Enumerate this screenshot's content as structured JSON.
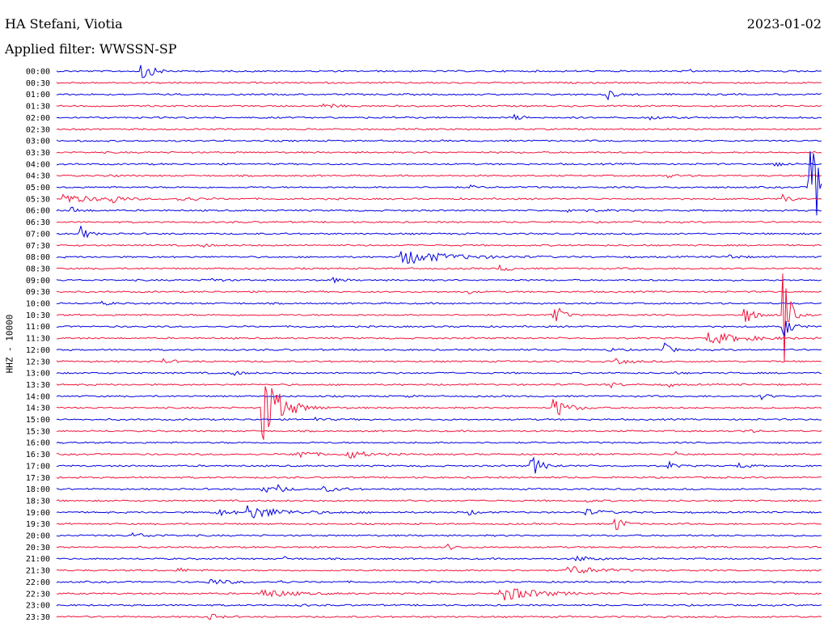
{
  "header": {
    "station": "HA Stefani, Viotia",
    "date": "2023-01-02",
    "filter": "Applied filter: WWSSN-SP"
  },
  "chart_data": {
    "type": "line",
    "title": "HA Stefani, Viotia",
    "ylabel": "HHZ - 10000",
    "colors": [
      "#0000e0",
      "#f0143c"
    ],
    "traces": [
      {
        "label": "00:00",
        "events": [
          [
            0.11,
            14,
            0.012
          ],
          [
            0.83,
            2,
            0.005
          ]
        ]
      },
      {
        "label": "00:30",
        "events": []
      },
      {
        "label": "01:00",
        "events": [
          [
            0.72,
            6,
            0.01
          ]
        ]
      },
      {
        "label": "01:30",
        "events": [
          [
            0.35,
            3,
            0.015
          ]
        ]
      },
      {
        "label": "02:00",
        "events": [
          [
            0.6,
            3,
            0.01
          ],
          [
            0.77,
            3,
            0.015
          ]
        ]
      },
      {
        "label": "02:30",
        "events": []
      },
      {
        "label": "03:00",
        "events": []
      },
      {
        "label": "03:30",
        "events": []
      },
      {
        "label": "04:00",
        "events": [
          [
            0.94,
            4,
            0.01
          ]
        ]
      },
      {
        "label": "04:30",
        "events": [
          [
            0.07,
            3,
            0.005
          ],
          [
            0.8,
            2,
            0.01
          ]
        ]
      },
      {
        "label": "05:00",
        "events": [
          [
            0.985,
            48,
            0.04
          ],
          [
            0.54,
            2,
            0.01
          ]
        ]
      },
      {
        "label": "05:30",
        "events": [
          [
            0.01,
            6,
            0.03
          ],
          [
            0.07,
            7,
            0.01
          ],
          [
            0.16,
            3,
            0.02
          ],
          [
            0.95,
            5,
            0.01
          ]
        ]
      },
      {
        "label": "06:00",
        "events": [
          [
            0.02,
            4,
            0.01
          ],
          [
            0.67,
            2,
            0.03
          ]
        ]
      },
      {
        "label": "06:30",
        "events": [
          [
            0.75,
            2,
            0.005
          ]
        ]
      },
      {
        "label": "07:00",
        "events": [
          [
            0.03,
            12,
            0.008
          ]
        ]
      },
      {
        "label": "07:30",
        "events": [
          [
            0.19,
            2,
            0.01
          ]
        ]
      },
      {
        "label": "08:00",
        "events": [
          [
            0.45,
            10,
            0.05
          ],
          [
            0.88,
            3,
            0.01
          ]
        ]
      },
      {
        "label": "08:30",
        "events": [
          [
            0.58,
            5,
            0.01
          ]
        ]
      },
      {
        "label": "09:00",
        "events": [
          [
            0.2,
            3,
            0.01
          ],
          [
            0.36,
            3,
            0.01
          ]
        ]
      },
      {
        "label": "09:30",
        "events": [
          [
            0.54,
            2,
            0.005
          ]
        ]
      },
      {
        "label": "10:00",
        "events": [
          [
            0.06,
            2,
            0.01
          ]
        ]
      },
      {
        "label": "10:30",
        "events": [
          [
            0.65,
            18,
            0.008
          ],
          [
            0.9,
            12,
            0.01
          ],
          [
            0.95,
            80,
            0.006
          ]
        ]
      },
      {
        "label": "11:00",
        "events": [
          [
            0.95,
            14,
            0.01
          ],
          [
            0.32,
            2,
            0.005
          ]
        ]
      },
      {
        "label": "11:30",
        "events": [
          [
            0.85,
            8,
            0.04
          ]
        ]
      },
      {
        "label": "12:00",
        "events": [
          [
            0.79,
            14,
            0.008
          ],
          [
            0.72,
            2,
            0.01
          ]
        ]
      },
      {
        "label": "12:30",
        "events": [
          [
            0.14,
            3,
            0.01
          ],
          [
            0.73,
            3,
            0.02
          ]
        ]
      },
      {
        "label": "13:00",
        "events": [
          [
            0.23,
            3,
            0.01
          ],
          [
            0.8,
            2,
            0.01
          ]
        ]
      },
      {
        "label": "13:30",
        "events": [
          [
            0.72,
            5,
            0.01
          ],
          [
            0.8,
            4,
            0.005
          ]
        ]
      },
      {
        "label": "14:00",
        "events": [
          [
            0.46,
            2,
            0.005
          ],
          [
            0.92,
            4,
            0.01
          ]
        ]
      },
      {
        "label": "14:30",
        "events": [
          [
            0.27,
            50,
            0.02
          ],
          [
            0.65,
            14,
            0.015
          ]
        ]
      },
      {
        "label": "15:00",
        "events": [
          [
            0.34,
            2,
            0.01
          ]
        ]
      },
      {
        "label": "15:30",
        "events": [
          [
            0.9,
            2,
            0.01
          ]
        ]
      },
      {
        "label": "16:00",
        "events": []
      },
      {
        "label": "16:30",
        "events": [
          [
            0.31,
            8,
            0.015
          ],
          [
            0.38,
            6,
            0.02
          ],
          [
            0.81,
            4,
            0.005
          ]
        ]
      },
      {
        "label": "17:00",
        "events": [
          [
            0.62,
            14,
            0.012
          ],
          [
            0.8,
            5,
            0.008
          ],
          [
            0.89,
            4,
            0.01
          ]
        ]
      },
      {
        "label": "17:30",
        "events": []
      },
      {
        "label": "18:00",
        "events": [
          [
            0.27,
            5,
            0.01
          ],
          [
            0.29,
            4,
            0.01
          ],
          [
            0.35,
            3,
            0.02
          ]
        ]
      },
      {
        "label": "18:30",
        "events": [
          [
            0.69,
            2,
            0.01
          ]
        ]
      },
      {
        "label": "19:00",
        "events": [
          [
            0.25,
            8,
            0.04
          ],
          [
            0.21,
            4,
            0.02
          ],
          [
            0.54,
            3,
            0.01
          ],
          [
            0.69,
            4,
            0.02
          ]
        ]
      },
      {
        "label": "19:30",
        "events": [
          [
            0.73,
            14,
            0.008
          ]
        ]
      },
      {
        "label": "20:00",
        "events": [
          [
            0.1,
            3,
            0.02
          ]
        ]
      },
      {
        "label": "20:30",
        "events": [
          [
            0.51,
            4,
            0.01
          ]
        ]
      },
      {
        "label": "21:00",
        "events": [
          [
            0.68,
            3,
            0.02
          ],
          [
            0.3,
            2,
            0.01
          ]
        ]
      },
      {
        "label": "21:30",
        "events": [
          [
            0.67,
            6,
            0.03
          ],
          [
            0.16,
            3,
            0.01
          ]
        ]
      },
      {
        "label": "22:00",
        "events": [
          [
            0.2,
            4,
            0.02
          ],
          [
            0.29,
            3,
            0.005
          ]
        ]
      },
      {
        "label": "22:30",
        "events": [
          [
            0.27,
            6,
            0.03
          ],
          [
            0.58,
            10,
            0.04
          ]
        ]
      },
      {
        "label": "23:00",
        "events": [
          [
            0.32,
            2,
            0.005
          ]
        ]
      },
      {
        "label": "23:30",
        "events": [
          [
            0.2,
            4,
            0.01
          ]
        ]
      }
    ]
  }
}
